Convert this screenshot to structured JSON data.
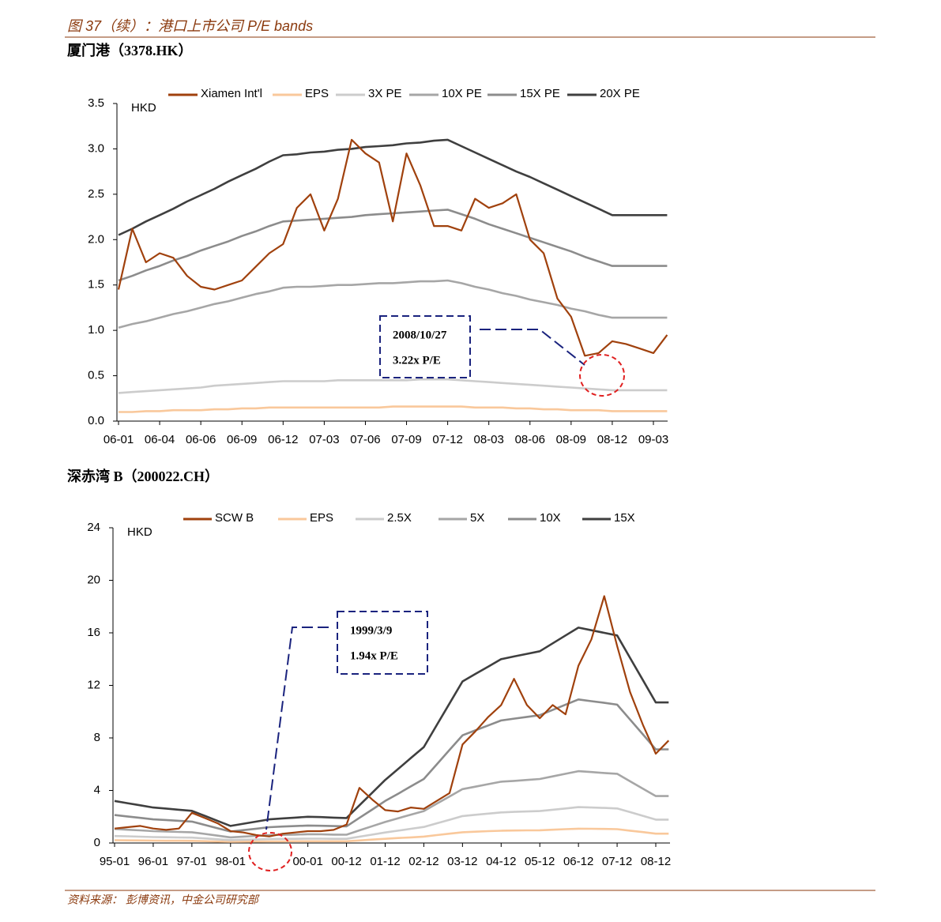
{
  "header": {
    "title": "图 37（续）：港口上市公司 P/E bands"
  },
  "chart_data": [
    {
      "type": "line",
      "title": "厦门港（3378.HK）",
      "y_unit": "HKD",
      "categories": [
        "06-01",
        null,
        null,
        "06-04",
        null,
        null,
        "06-06",
        null,
        null,
        "06-09",
        null,
        null,
        "06-12",
        null,
        null,
        "07-03",
        null,
        null,
        "07-06",
        null,
        null,
        "07-09",
        null,
        null,
        "07-12",
        null,
        null,
        "08-03",
        null,
        null,
        "08-06",
        null,
        null,
        "08-09",
        null,
        null,
        "08-12",
        null,
        null,
        "09-03",
        null
      ],
      "ylim": [
        0,
        3.5
      ],
      "yticks": [
        {
          "value": 0,
          "label": "0.0"
        },
        0.5,
        {
          "value": 1,
          "label": "1.0"
        },
        1.5,
        {
          "value": 2,
          "label": "2.0"
        },
        2.5,
        {
          "value": 3,
          "label": "3.0"
        },
        3.5
      ],
      "series": [
        {
          "name": "Xiamen Int'l",
          "color": "#a0410d",
          "values": [
            1.45,
            2.12,
            1.75,
            1.85,
            1.8,
            1.6,
            1.48,
            1.45,
            1.5,
            1.55,
            1.7,
            1.85,
            1.95,
            2.35,
            2.5,
            2.1,
            2.45,
            3.1,
            2.95,
            2.85,
            2.2,
            2.95,
            2.6,
            2.15,
            2.15,
            2.1,
            2.45,
            2.35,
            2.4,
            2.5,
            2.0,
            1.85,
            1.35,
            1.15,
            0.72,
            0.75,
            0.88,
            0.85,
            0.8,
            0.75,
            0.95
          ]
        },
        {
          "name": "EPS",
          "color": "#f9c89b",
          "values": [
            0.1,
            0.1,
            0.11,
            0.11,
            0.12,
            0.12,
            0.12,
            0.13,
            0.13,
            0.14,
            0.14,
            0.15,
            0.15,
            0.15,
            0.15,
            0.15,
            0.15,
            0.15,
            0.15,
            0.15,
            0.16,
            0.16,
            0.16,
            0.16,
            0.16,
            0.16,
            0.15,
            0.15,
            0.15,
            0.14,
            0.14,
            0.13,
            0.13,
            0.12,
            0.12,
            0.12,
            0.11,
            0.11,
            0.11,
            0.11,
            0.11
          ]
        },
        {
          "name": "3X PE",
          "color": "#cccccc",
          "values": [
            0.31,
            0.32,
            0.33,
            0.34,
            0.35,
            0.36,
            0.37,
            0.39,
            0.4,
            0.41,
            0.42,
            0.43,
            0.44,
            0.44,
            0.44,
            0.44,
            0.45,
            0.45,
            0.45,
            0.45,
            0.45,
            0.45,
            0.46,
            0.46,
            0.46,
            0.45,
            0.44,
            0.43,
            0.42,
            0.41,
            0.4,
            0.39,
            0.38,
            0.37,
            0.36,
            0.35,
            0.34,
            0.34,
            0.34,
            0.34,
            0.34
          ]
        },
        {
          "name": "10X PE",
          "color": "#a6a6a6",
          "values": [
            1.03,
            1.07,
            1.1,
            1.14,
            1.18,
            1.21,
            1.25,
            1.29,
            1.32,
            1.36,
            1.4,
            1.43,
            1.47,
            1.48,
            1.48,
            1.49,
            1.5,
            1.5,
            1.51,
            1.52,
            1.52,
            1.53,
            1.54,
            1.54,
            1.55,
            1.52,
            1.48,
            1.45,
            1.41,
            1.38,
            1.34,
            1.31,
            1.28,
            1.24,
            1.21,
            1.17,
            1.14,
            1.14,
            1.14,
            1.14,
            1.14
          ]
        },
        {
          "name": "15X PE",
          "color": "#8c8c8c",
          "values": [
            1.55,
            1.6,
            1.66,
            1.71,
            1.77,
            1.82,
            1.88,
            1.93,
            1.98,
            2.04,
            2.09,
            2.15,
            2.2,
            2.21,
            2.22,
            2.23,
            2.24,
            2.25,
            2.27,
            2.28,
            2.29,
            2.3,
            2.31,
            2.32,
            2.33,
            2.28,
            2.23,
            2.17,
            2.12,
            2.07,
            2.02,
            1.97,
            1.92,
            1.87,
            1.81,
            1.76,
            1.71,
            1.71,
            1.71,
            1.71,
            1.71
          ]
        },
        {
          "name": "20X PE",
          "color": "#3f3f3f",
          "values": [
            2.05,
            2.12,
            2.2,
            2.27,
            2.34,
            2.42,
            2.49,
            2.56,
            2.64,
            2.71,
            2.78,
            2.86,
            2.93,
            2.94,
            2.96,
            2.97,
            2.99,
            3.0,
            3.02,
            3.03,
            3.04,
            3.06,
            3.07,
            3.09,
            3.1,
            3.03,
            2.96,
            2.89,
            2.82,
            2.75,
            2.69,
            2.62,
            2.55,
            2.48,
            2.41,
            2.34,
            2.27,
            2.27,
            2.27,
            2.27,
            2.27
          ]
        }
      ],
      "annotation": {
        "date": "2008/10/27",
        "text": "3.22x P/E"
      }
    },
    {
      "type": "line",
      "title": "深赤湾 B（200022.CH）",
      "y_unit": "HKD",
      "categories": [
        "95-01",
        null,
        null,
        "96-01",
        null,
        null,
        "97-01",
        null,
        null,
        "98-01",
        null,
        null,
        null,
        null,
        null,
        "00-01",
        null,
        null,
        "00-12",
        null,
        null,
        "01-12",
        null,
        null,
        "02-12",
        null,
        null,
        "03-12",
        null,
        null,
        "04-12",
        null,
        null,
        "05-12",
        null,
        null,
        "06-12",
        null,
        null,
        "07-12",
        null,
        null,
        "08-12",
        null
      ],
      "ylim": [
        0,
        24
      ],
      "yticks": [
        0,
        4,
        8,
        12,
        16,
        20,
        24
      ],
      "series": [
        {
          "name": "SCW B",
          "color": "#a0410d",
          "values": [
            1.1,
            1.2,
            1.3,
            1.1,
            1.0,
            1.1,
            2.3,
            1.9,
            1.5,
            0.9,
            0.8,
            0.6,
            0.5,
            0.7,
            0.8,
            0.9,
            0.9,
            1.0,
            1.4,
            4.2,
            3.3,
            2.5,
            2.4,
            2.7,
            2.6,
            3.2,
            3.8,
            7.5,
            8.5,
            9.6,
            10.5,
            12.5,
            10.5,
            9.5,
            10.5,
            9.8,
            13.5,
            15.5,
            18.8,
            15.0,
            11.5,
            9.0,
            6.8,
            7.8
          ]
        },
        {
          "name": "EPS",
          "color": "#f9c89b",
          "values": [
            0.21,
            0.2,
            0.19,
            0.18,
            0.17,
            0.17,
            0.16,
            0.14,
            0.11,
            0.09,
            0.1,
            0.11,
            0.12,
            0.12,
            0.13,
            0.13,
            0.13,
            0.13,
            0.13,
            0.19,
            0.26,
            0.32,
            0.38,
            0.43,
            0.49,
            0.6,
            0.71,
            0.82,
            0.86,
            0.9,
            0.93,
            0.95,
            0.96,
            0.97,
            1.01,
            1.05,
            1.09,
            1.08,
            1.07,
            1.05,
            0.94,
            0.83,
            0.71,
            0.71
          ]
        },
        {
          "name": "2.5X",
          "color": "#cccccc",
          "values": [
            0.53,
            0.51,
            0.48,
            0.45,
            0.44,
            0.42,
            0.41,
            0.35,
            0.28,
            0.22,
            0.25,
            0.27,
            0.3,
            0.31,
            0.32,
            0.33,
            0.33,
            0.32,
            0.32,
            0.48,
            0.64,
            0.8,
            0.94,
            1.08,
            1.22,
            1.5,
            1.77,
            2.05,
            2.15,
            2.24,
            2.33,
            2.37,
            2.4,
            2.43,
            2.53,
            2.63,
            2.73,
            2.7,
            2.67,
            2.63,
            2.35,
            2.07,
            1.78,
            1.78
          ]
        },
        {
          "name": "5X",
          "color": "#a6a6a6",
          "values": [
            1.07,
            1.01,
            0.96,
            0.9,
            0.87,
            0.84,
            0.82,
            0.69,
            0.56,
            0.43,
            0.49,
            0.54,
            0.6,
            0.62,
            0.64,
            0.67,
            0.66,
            0.64,
            0.63,
            0.96,
            1.28,
            1.6,
            1.88,
            2.16,
            2.43,
            2.99,
            3.54,
            4.1,
            4.29,
            4.48,
            4.67,
            4.73,
            4.8,
            4.87,
            5.07,
            5.27,
            5.47,
            5.4,
            5.33,
            5.27,
            4.7,
            4.13,
            3.57,
            3.57
          ]
        },
        {
          "name": "10X",
          "color": "#8c8c8c",
          "values": [
            2.13,
            2.02,
            1.91,
            1.8,
            1.75,
            1.69,
            1.63,
            1.38,
            1.12,
            0.87,
            0.98,
            1.09,
            1.2,
            1.25,
            1.29,
            1.33,
            1.31,
            1.29,
            1.27,
            1.91,
            2.55,
            3.2,
            3.75,
            4.31,
            4.87,
            5.98,
            7.09,
            8.2,
            8.58,
            8.95,
            9.33,
            9.47,
            9.6,
            9.73,
            10.13,
            10.53,
            10.93,
            10.8,
            10.67,
            10.53,
            9.4,
            8.27,
            7.13,
            7.13
          ]
        },
        {
          "name": "15X",
          "color": "#3f3f3f",
          "values": [
            3.2,
            3.03,
            2.87,
            2.7,
            2.62,
            2.53,
            2.45,
            2.07,
            1.68,
            1.3,
            1.47,
            1.63,
            1.8,
            1.87,
            1.93,
            2.0,
            1.97,
            1.93,
            1.9,
            2.87,
            3.83,
            4.8,
            5.63,
            6.47,
            7.3,
            8.97,
            10.63,
            12.3,
            12.87,
            13.43,
            14.0,
            14.2,
            14.4,
            14.6,
            15.2,
            15.8,
            16.4,
            16.2,
            16.0,
            15.8,
            14.1,
            12.4,
            10.7,
            10.7
          ]
        }
      ],
      "annotation": {
        "date": "1999/3/9",
        "text": "1.94x P/E"
      }
    }
  ],
  "source": "资料来源： 彭博资讯，中金公司研究部"
}
